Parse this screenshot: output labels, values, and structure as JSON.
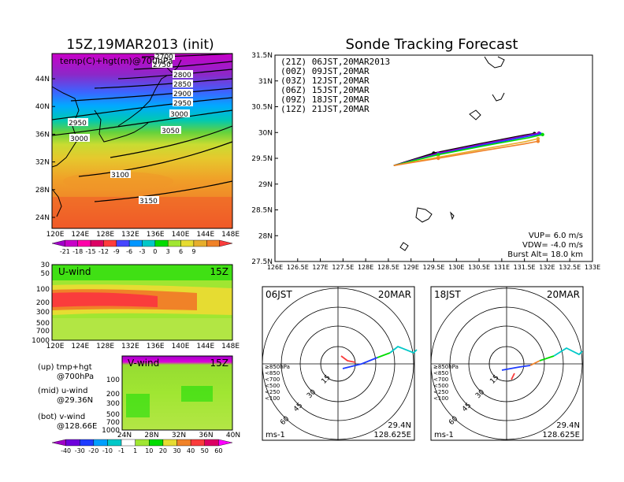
{
  "left_panel": {
    "title": "15Z,19MAR2013 (init)",
    "map_label": "temp(C)+hgt(m)@700hPa",
    "lat_ticks": [
      "44N",
      "40N",
      "36N",
      "32N",
      "28N",
      "24N"
    ],
    "lon_ticks": [
      "120E",
      "124E",
      "128E",
      "132E",
      "136E",
      "140E",
      "144E",
      "148E"
    ],
    "contour_labels": [
      "2700",
      "2750",
      "2800",
      "2850",
      "2900",
      "2950",
      "2950",
      "3000",
      "3000",
      "3050",
      "3100",
      "3150"
    ],
    "temp_colorbar": [
      "-21",
      "-18",
      "-15",
      "-12",
      "-9",
      "-6",
      "-3",
      "0",
      "3",
      "6",
      "9"
    ],
    "temp_colors": [
      "#a000c8",
      "#c800c8",
      "#ff00aa",
      "#dc0064",
      "#ff3c3c",
      "#4646ff",
      "#0096ff",
      "#00c8c8",
      "#00dc00",
      "#a0e632",
      "#e6dc32",
      "#e6af2d",
      "#f08228",
      "#fa3c3c"
    ],
    "u_wind": {
      "label": "U-wind",
      "time": "15Z",
      "levels": [
        "30",
        "50",
        "100",
        "200",
        "300",
        "500",
        "700",
        "1000"
      ],
      "lon_ticks": [
        "120E",
        "124E",
        "128E",
        "132E",
        "136E",
        "140E",
        "144E",
        "148E"
      ]
    },
    "v_wind": {
      "label": "V-wind",
      "time": "15Z",
      "levels": [
        "100",
        "200",
        "300",
        "500",
        "700",
        "1000"
      ],
      "lat_ticks": [
        "24N",
        "28N",
        "32N",
        "36N",
        "40N"
      ]
    },
    "notes": [
      {
        "line1": "(up) tmp+hgt",
        "line2": "@700hPa"
      },
      {
        "line1": "(mid) u-wind",
        "line2": "@29.36N"
      },
      {
        "line1": "(bot) v-wind",
        "line2": "@128.66E"
      }
    ],
    "wind_colorbar": [
      "-40",
      "-30",
      "-20",
      "-10",
      "-1",
      "1",
      "10",
      "20",
      "30",
      "40",
      "50",
      "60"
    ],
    "wind_colors": [
      "#a000c8",
      "#6e00dc",
      "#1e3cff",
      "#00a0ff",
      "#00c8c8",
      "#ffffff",
      "#a0e632",
      "#00dc00",
      "#e6dc32",
      "#f08228",
      "#fa3c3c",
      "#dc0064",
      "#ff00ff"
    ]
  },
  "right_panel": {
    "title": "Sonde Tracking Forecast",
    "legend": [
      {
        "text": "(21Z) 06JST,20MAR2013",
        "color": "#000000"
      },
      {
        "text": "(00Z) 09JST,20MAR",
        "color": "#a000c8"
      },
      {
        "text": "(03Z) 12JST,20MAR",
        "color": "#1e3cff"
      },
      {
        "text": "(06Z) 15JST,20MAR",
        "color": "#00dc00"
      },
      {
        "text": "(09Z) 18JST,20MAR",
        "color": "#e6af2d"
      },
      {
        "text": "(12Z) 21JST,20MAR",
        "color": "#f08228"
      }
    ],
    "lat_ticks": [
      "31.5N",
      "31N",
      "30.5N",
      "30N",
      "29.5N",
      "29N",
      "28.5N",
      "28N",
      "27.5N"
    ],
    "lon_ticks": [
      "126E",
      "126.5E",
      "127E",
      "127.5E",
      "128E",
      "128.5E",
      "129E",
      "129.5E",
      "130E",
      "130.5E",
      "131E",
      "131.5E",
      "132E",
      "132.5E",
      "133E"
    ],
    "params": [
      "VUP= 6.0 m/s",
      "VDW= -4.0 m/s",
      "Burst Alt= 18.0 km"
    ]
  },
  "chart_data": [
    {
      "type": "line",
      "title": "Sonde Tracking Forecast",
      "xlim": [
        126,
        133
      ],
      "ylim": [
        27.5,
        31.5
      ],
      "series": [
        {
          "name": "(21Z) 06JST,20MAR2013",
          "x": [
            128.62,
            129.5,
            130.5,
            131.5,
            131.72
          ],
          "y": [
            29.36,
            29.6,
            29.78,
            29.95,
            29.98
          ]
        },
        {
          "name": "(00Z) 09JST,20MAR",
          "x": [
            128.62,
            129.6,
            130.6,
            131.6,
            131.82
          ],
          "y": [
            29.36,
            29.6,
            29.78,
            29.95,
            29.99
          ]
        },
        {
          "name": "(03Z) 12JST,20MAR",
          "x": [
            128.62,
            129.6,
            130.6,
            131.6,
            131.85
          ],
          "y": [
            29.36,
            29.58,
            29.76,
            29.93,
            29.97
          ]
        },
        {
          "name": "(06Z) 15JST,20MAR",
          "x": [
            128.62,
            129.6,
            130.6,
            131.6,
            131.9
          ],
          "y": [
            29.36,
            29.57,
            29.74,
            29.9,
            29.96
          ]
        },
        {
          "name": "(09Z) 18JST,20MAR",
          "x": [
            128.62,
            129.6,
            130.6,
            131.5,
            131.8
          ],
          "y": [
            29.36,
            29.52,
            29.68,
            29.82,
            29.88
          ]
        },
        {
          "name": "(12Z) 21JST,20MAR",
          "x": [
            128.62,
            129.6,
            130.6,
            131.5,
            131.8
          ],
          "y": [
            29.36,
            29.5,
            29.65,
            29.78,
            29.83
          ]
        }
      ]
    }
  ],
  "hodographs": [
    {
      "time": "06JST",
      "date": "20MAR",
      "rings": [
        "15",
        "30",
        "45",
        "60"
      ],
      "unit": "ms-1",
      "lat": "29.4N",
      "lon": "128.625E",
      "levels": [
        {
          "label": "≥850hPa",
          "color": "#fa3c3c"
        },
        {
          "label": "<850",
          "color": "#f08228"
        },
        {
          "label": "<700",
          "color": "#e6dc32"
        },
        {
          "label": "<500",
          "color": "#00dc00"
        },
        {
          "label": "<250",
          "color": "#00c8c8"
        },
        {
          "label": "<100",
          "color": "#1e3cff"
        }
      ]
    },
    {
      "time": "18JST",
      "date": "20MAR",
      "rings": [
        "15",
        "30",
        "45",
        "60"
      ],
      "unit": "ms-1",
      "lat": "29.4N",
      "lon": "128.625E",
      "levels": [
        {
          "label": "≥850hPa",
          "color": "#fa3c3c"
        },
        {
          "label": "<850",
          "color": "#f08228"
        },
        {
          "label": "<700",
          "color": "#e6dc32"
        },
        {
          "label": "<500",
          "color": "#00dc00"
        },
        {
          "label": "<250",
          "color": "#00c8c8"
        },
        {
          "label": "<100",
          "color": "#1e3cff"
        }
      ]
    }
  ]
}
